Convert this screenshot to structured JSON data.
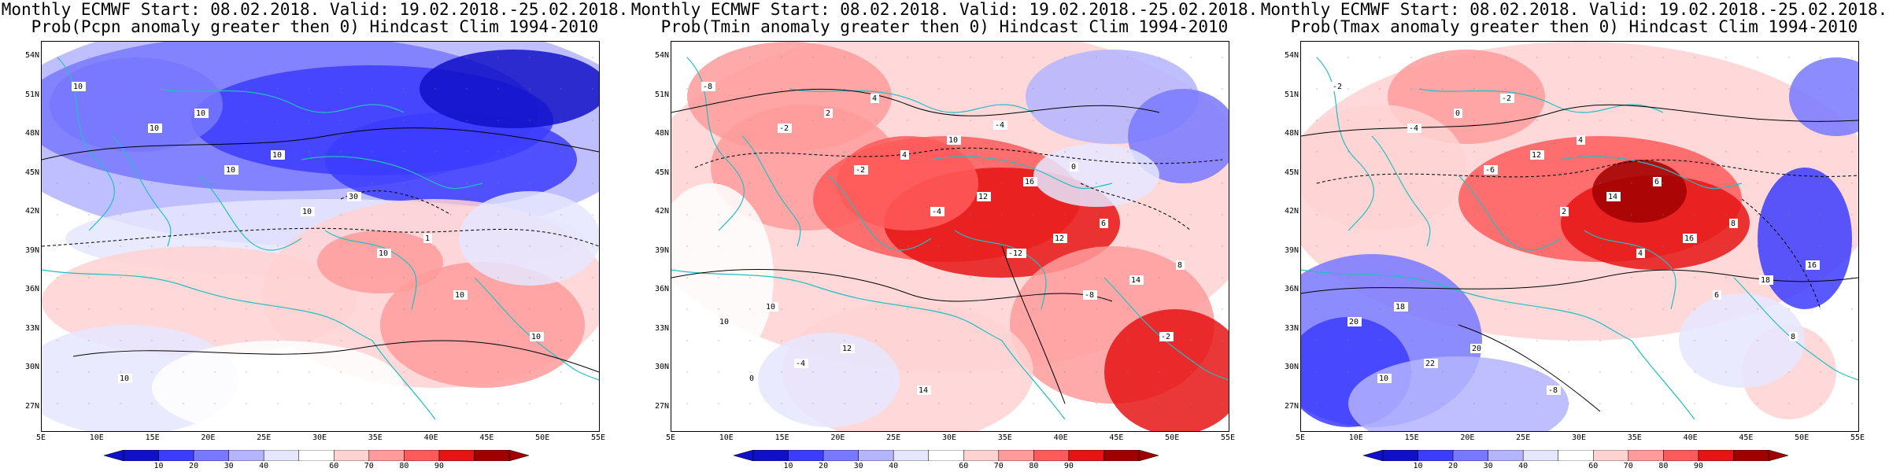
{
  "panels": [
    {
      "id": "pcpn",
      "title_line1": "Monthly ECMWF Start: 08.02.2018. Valid: 19.02.2018.-25.02.2018.",
      "title_line2": "Prob(Pcpn anomaly greater then 0) Hindcast Clim 1994-2010",
      "variable": "Pcpn",
      "contour_labels": [
        "10",
        "10",
        "10",
        "10",
        "10",
        "10",
        "10",
        "10",
        "10",
        "10",
        "30",
        "1"
      ]
    },
    {
      "id": "tmin",
      "title_line1": "Monthly ECMWF Start: 08.02.2018. Valid: 19.02.2018.-25.02.2018.",
      "title_line2": "Prob(Tmin anomaly greater then 0) Hindcast Clim 1994-2010",
      "variable": "Tmin",
      "contour_labels": [
        "-8",
        "-2",
        "-2",
        "-4",
        "-12",
        "-8",
        "-2",
        "0",
        "2",
        "4",
        "12",
        "12",
        "14",
        "10",
        "-4",
        "4",
        "10",
        "16",
        "6",
        "8",
        "10",
        "12",
        "14",
        "-4",
        "0"
      ]
    },
    {
      "id": "tmax",
      "title_line1": "Monthly ECMWF Start: 08.02.2018. Valid: 19.02.2018.-25.02.2018.",
      "title_line2": "Prob(Tmax anomaly greater then 0) Hindcast Clim 1994-2010",
      "variable": "Tmax",
      "contour_labels": [
        "-2",
        "-4",
        "-6",
        "2",
        "4",
        "6",
        "8",
        "10",
        "0",
        "12",
        "14",
        "16",
        "18",
        "20",
        "22",
        "-2",
        "4",
        "6",
        "8",
        "16",
        "18",
        "20",
        "-8"
      ]
    }
  ],
  "axes": {
    "lat_labels": [
      "54N",
      "51N",
      "48N",
      "45N",
      "42N",
      "39N",
      "36N",
      "33N",
      "30N",
      "27N"
    ],
    "lon_labels": [
      "5E",
      "10E",
      "15E",
      "20E",
      "25E",
      "30E",
      "35E",
      "40E",
      "45E",
      "50E",
      "55E"
    ]
  },
  "colorbar": {
    "ticks": [
      "10",
      "20",
      "30",
      "40",
      "60",
      "70",
      "80",
      "90"
    ],
    "colors": [
      "#1010c8",
      "#3c3cff",
      "#7878ff",
      "#b4b4ff",
      "#e6e6ff",
      "#ffffff",
      "#ffd2d2",
      "#ff9b9b",
      "#ff5a5a",
      "#e61414",
      "#a00000"
    ]
  },
  "map_colors": {
    "coast": "#20c0c0",
    "contour": "#000000"
  }
}
